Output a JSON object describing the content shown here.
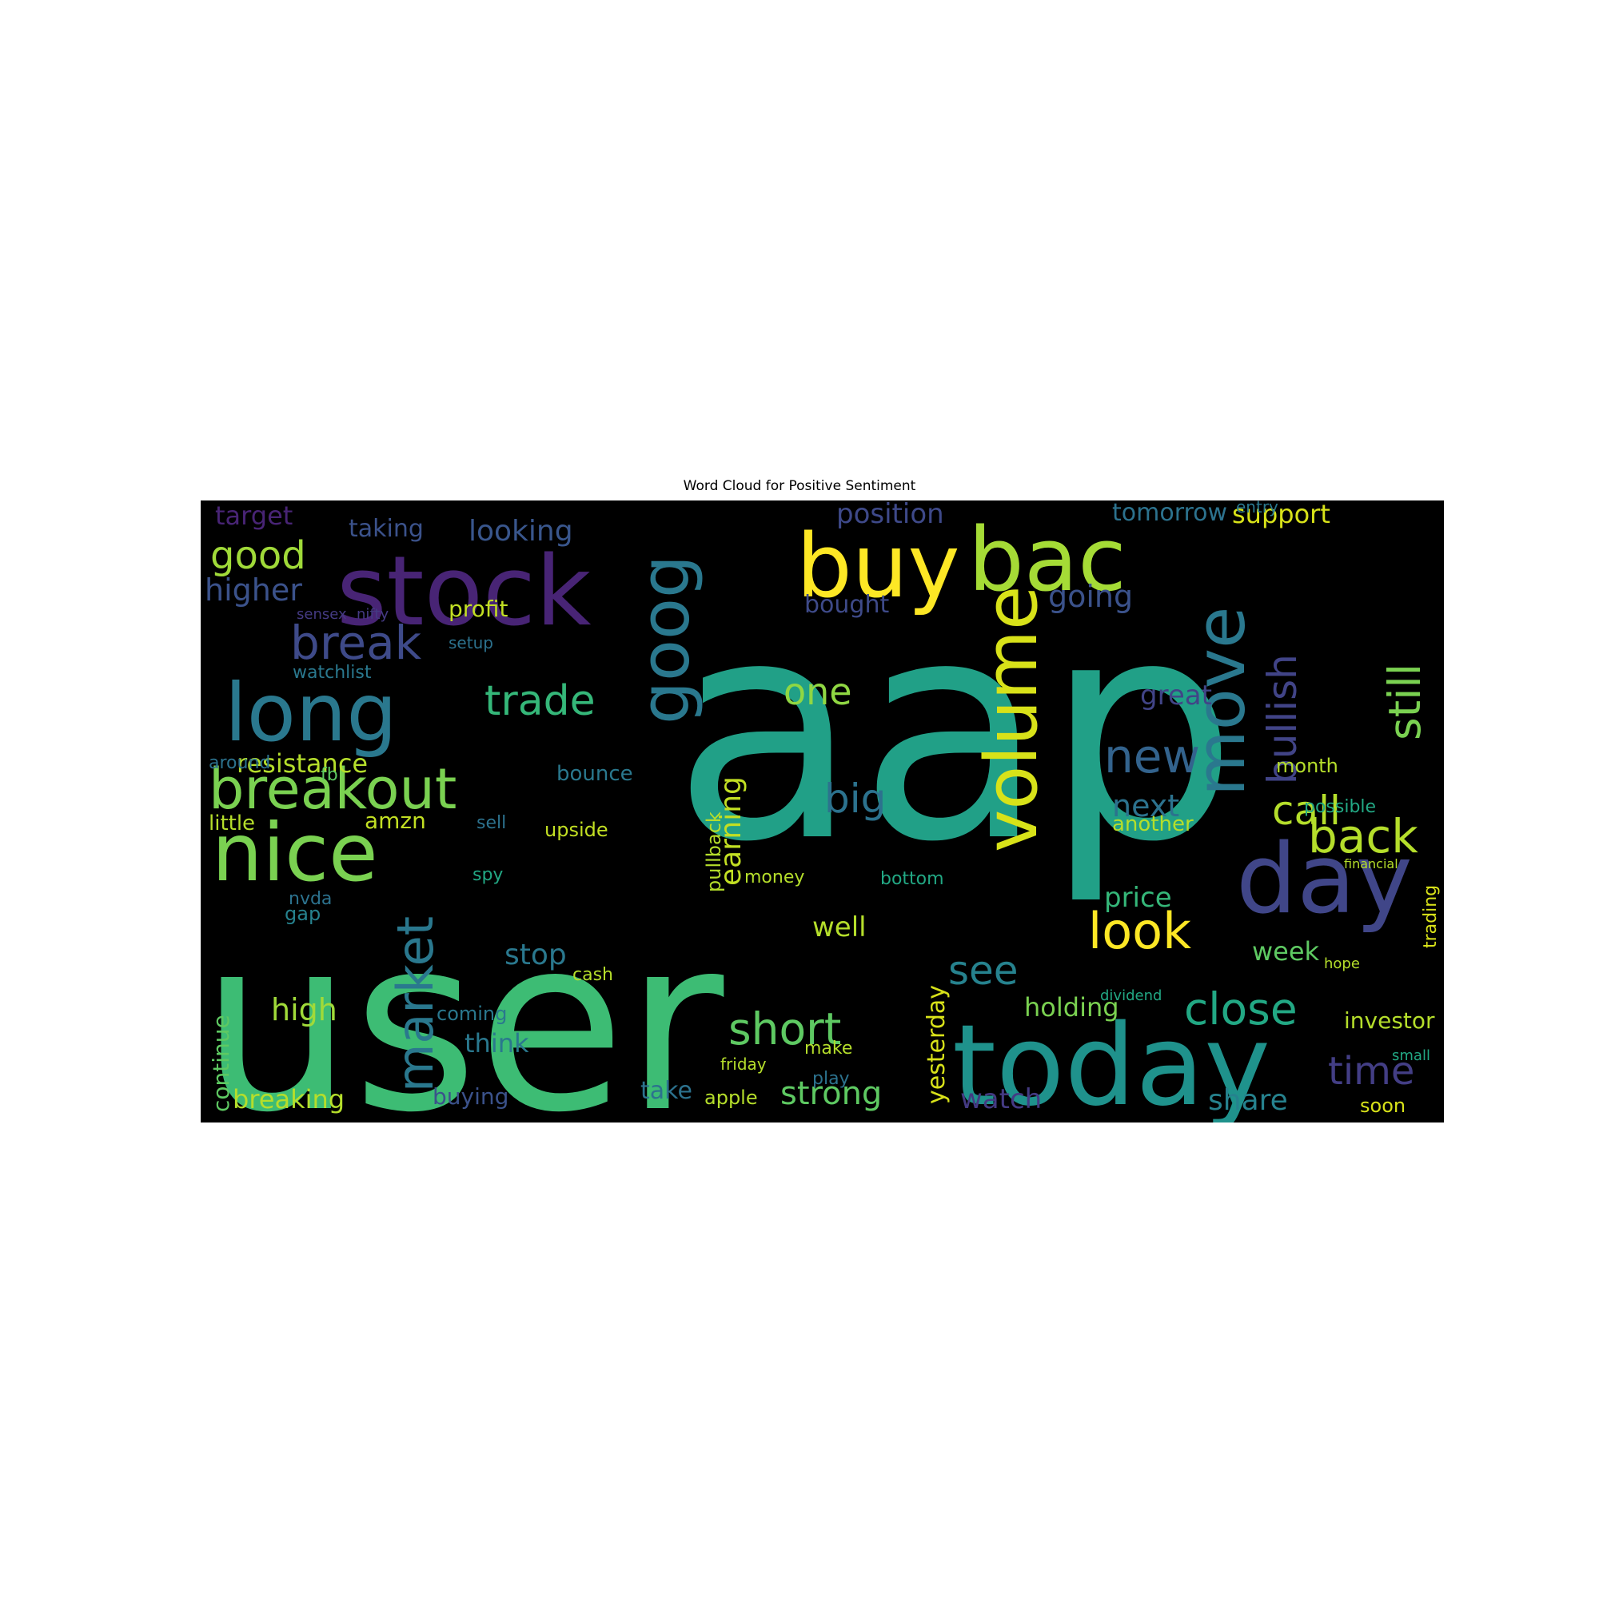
{
  "chart_data": {
    "type": "wordcloud",
    "title": "Word Cloud for Positive Sentiment",
    "background": "#000000",
    "colormap": "viridis",
    "words": [
      {
        "text": "aap",
        "weight": 1.0,
        "color": "#21a087",
        "rotate": false
      },
      {
        "text": "user",
        "weight": 0.95,
        "color": "#3dbc74",
        "rotate": false
      },
      {
        "text": "today",
        "weight": 0.42,
        "color": "#1f928c",
        "rotate": false
      },
      {
        "text": "stock",
        "weight": 0.4,
        "color": "#482475",
        "rotate": false
      },
      {
        "text": "day",
        "weight": 0.38,
        "color": "#404688",
        "rotate": false
      },
      {
        "text": "buy",
        "weight": 0.37,
        "color": "#fde725",
        "rotate": false
      },
      {
        "text": "bac",
        "weight": 0.36,
        "color": "#a5db36",
        "rotate": false
      },
      {
        "text": "long",
        "weight": 0.36,
        "color": "#2a788e",
        "rotate": false
      },
      {
        "text": "nice",
        "weight": 0.36,
        "color": "#7ad151",
        "rotate": false
      },
      {
        "text": "volume",
        "weight": 0.33,
        "color": "#d8e219",
        "rotate": true
      },
      {
        "text": "goog",
        "weight": 0.3,
        "color": "#2a788e",
        "rotate": true
      },
      {
        "text": "move",
        "weight": 0.3,
        "color": "#2a788e",
        "rotate": true
      },
      {
        "text": "breakout",
        "weight": 0.24,
        "color": "#7ad151",
        "rotate": false
      },
      {
        "text": "market",
        "weight": 0.22,
        "color": "#2a788e",
        "rotate": true
      },
      {
        "text": "look",
        "weight": 0.22,
        "color": "#fde725",
        "rotate": false
      },
      {
        "text": "short",
        "weight": 0.2,
        "color": "#5ec962",
        "rotate": false
      },
      {
        "text": "back",
        "weight": 0.2,
        "color": "#b5de2b",
        "rotate": false
      },
      {
        "text": "break",
        "weight": 0.2,
        "color": "#3e4a89",
        "rotate": false
      },
      {
        "text": "close",
        "weight": 0.2,
        "color": "#22a884",
        "rotate": false
      },
      {
        "text": "new",
        "weight": 0.2,
        "color": "#33638d",
        "rotate": false
      },
      {
        "text": "trade",
        "weight": 0.18,
        "color": "#35b779",
        "rotate": false
      },
      {
        "text": "still",
        "weight": 0.18,
        "color": "#7ad151",
        "rotate": true
      },
      {
        "text": "bullish",
        "weight": 0.18,
        "color": "#414487",
        "rotate": true
      },
      {
        "text": "time",
        "weight": 0.16,
        "color": "#433e85",
        "rotate": false
      },
      {
        "text": "call",
        "weight": 0.16,
        "color": "#b5de2b",
        "rotate": false
      },
      {
        "text": "big",
        "weight": 0.16,
        "color": "#2c728e",
        "rotate": false
      },
      {
        "text": "see",
        "weight": 0.16,
        "color": "#26828e",
        "rotate": false
      },
      {
        "text": "good",
        "weight": 0.15,
        "color": "#a0da39",
        "rotate": false
      },
      {
        "text": "one",
        "weight": 0.15,
        "color": "#90d743",
        "rotate": false
      },
      {
        "text": "strong",
        "weight": 0.13,
        "color": "#5ec962",
        "rotate": false
      },
      {
        "text": "higher",
        "weight": 0.12,
        "color": "#3b528b",
        "rotate": false
      },
      {
        "text": "looking",
        "weight": 0.12,
        "color": "#39568c",
        "rotate": false
      },
      {
        "text": "high",
        "weight": 0.12,
        "color": "#a0da39",
        "rotate": false
      },
      {
        "text": "next",
        "weight": 0.12,
        "color": "#2c728e",
        "rotate": false
      },
      {
        "text": "watch",
        "weight": 0.12,
        "color": "#443a83",
        "rotate": false
      },
      {
        "text": "share",
        "weight": 0.12,
        "color": "#26828e",
        "rotate": false
      },
      {
        "text": "going",
        "weight": 0.12,
        "color": "#3b528b",
        "rotate": false
      },
      {
        "text": "position",
        "weight": 0.12,
        "color": "#3e4989",
        "rotate": false
      },
      {
        "text": "breaking",
        "weight": 0.11,
        "color": "#b5de2b",
        "rotate": false
      },
      {
        "text": "earning",
        "weight": 0.11,
        "color": "#c2df23",
        "rotate": true
      },
      {
        "text": "resistance",
        "weight": 0.1,
        "color": "#b5de2b",
        "rotate": false
      },
      {
        "text": "support",
        "weight": 0.1,
        "color": "#d8e219",
        "rotate": false
      },
      {
        "text": "tomorrow",
        "weight": 0.1,
        "color": "#2c728e",
        "rotate": false
      },
      {
        "text": "holding",
        "weight": 0.1,
        "color": "#7ad151",
        "rotate": false
      },
      {
        "text": "week",
        "weight": 0.1,
        "color": "#5ec962",
        "rotate": false
      },
      {
        "text": "price",
        "weight": 0.1,
        "color": "#35b779",
        "rotate": false
      },
      {
        "text": "yesterday",
        "weight": 0.1,
        "color": "#d8e219",
        "rotate": true
      },
      {
        "text": "continue",
        "weight": 0.1,
        "color": "#5ec962",
        "rotate": true
      },
      {
        "text": "target",
        "weight": 0.1,
        "color": "#482475",
        "rotate": false
      },
      {
        "text": "stop",
        "weight": 0.09,
        "color": "#2a788e",
        "rotate": false
      },
      {
        "text": "think",
        "weight": 0.09,
        "color": "#2a788e",
        "rotate": false
      },
      {
        "text": "well",
        "weight": 0.09,
        "color": "#b5de2b",
        "rotate": false
      },
      {
        "text": "great",
        "weight": 0.09,
        "color": "#414487",
        "rotate": false
      },
      {
        "text": "bought",
        "weight": 0.09,
        "color": "#3e4a89",
        "rotate": false
      },
      {
        "text": "taking",
        "weight": 0.09,
        "color": "#3b528b",
        "rotate": false
      },
      {
        "text": "investor",
        "weight": 0.08,
        "color": "#b5de2b",
        "rotate": false
      },
      {
        "text": "amzn",
        "weight": 0.08,
        "color": "#c2df23",
        "rotate": false
      },
      {
        "text": "little",
        "weight": 0.08,
        "color": "#b5de2b",
        "rotate": false
      },
      {
        "text": "take",
        "weight": 0.08,
        "color": "#2c728e",
        "rotate": false
      },
      {
        "text": "profit",
        "weight": 0.08,
        "color": "#c2df23",
        "rotate": false
      },
      {
        "text": "watchlist",
        "weight": 0.07,
        "color": "#2a788e",
        "rotate": false
      },
      {
        "text": "buying",
        "weight": 0.07,
        "color": "#3b528b",
        "rotate": false
      },
      {
        "text": "upside",
        "weight": 0.07,
        "color": "#c2df23",
        "rotate": false
      },
      {
        "text": "bounce",
        "weight": 0.07,
        "color": "#2a788e",
        "rotate": false
      },
      {
        "text": "another",
        "weight": 0.07,
        "color": "#b5de2b",
        "rotate": false
      },
      {
        "text": "possible",
        "weight": 0.06,
        "color": "#22a884",
        "rotate": false
      },
      {
        "text": "money",
        "weight": 0.06,
        "color": "#b5de2b",
        "rotate": false
      },
      {
        "text": "bottom",
        "weight": 0.06,
        "color": "#22a884",
        "rotate": false
      },
      {
        "text": "coming",
        "weight": 0.06,
        "color": "#2a788e",
        "rotate": false
      },
      {
        "text": "friday",
        "weight": 0.05,
        "color": "#b5de2b",
        "rotate": false
      },
      {
        "text": "apple",
        "weight": 0.05,
        "color": "#b5de2b",
        "rotate": false
      },
      {
        "text": "soon",
        "weight": 0.05,
        "color": "#d8e219",
        "rotate": false
      },
      {
        "text": "month",
        "weight": 0.05,
        "color": "#b5de2b",
        "rotate": false
      },
      {
        "text": "trading",
        "weight": 0.05,
        "color": "#d8e219",
        "rotate": true
      },
      {
        "text": "entry",
        "weight": 0.05,
        "color": "#2a788e",
        "rotate": false
      },
      {
        "text": "setup",
        "weight": 0.05,
        "color": "#2c728e",
        "rotate": false
      },
      {
        "text": "nvda",
        "weight": 0.05,
        "color": "#2c728e",
        "rotate": false
      },
      {
        "text": "gap",
        "weight": 0.05,
        "color": "#26828e",
        "rotate": false
      },
      {
        "text": "fb",
        "weight": 0.05,
        "color": "#5ec962",
        "rotate": false
      },
      {
        "text": "spy",
        "weight": 0.05,
        "color": "#22a884",
        "rotate": false
      },
      {
        "text": "sell",
        "weight": 0.05,
        "color": "#2c728e",
        "rotate": false
      },
      {
        "text": "around",
        "weight": 0.05,
        "color": "#2c728e",
        "rotate": false
      },
      {
        "text": "dividend",
        "weight": 0.04,
        "color": "#22a884",
        "rotate": false
      },
      {
        "text": "pullback",
        "weight": 0.04,
        "color": "#b5de2b",
        "rotate": true
      },
      {
        "text": "sensex",
        "weight": 0.04,
        "color": "#443a83",
        "rotate": false
      },
      {
        "text": "nifty",
        "weight": 0.04,
        "color": "#443a83",
        "rotate": false
      },
      {
        "text": "make",
        "weight": 0.04,
        "color": "#b5de2b",
        "rotate": false
      },
      {
        "text": "play",
        "weight": 0.04,
        "color": "#2c728e",
        "rotate": false
      },
      {
        "text": "cash",
        "weight": 0.04,
        "color": "#b5de2b",
        "rotate": false
      },
      {
        "text": "hope",
        "weight": 0.04,
        "color": "#b5de2b",
        "rotate": false
      },
      {
        "text": "financial",
        "weight": 0.03,
        "color": "#b5de2b",
        "rotate": false
      },
      {
        "text": "small",
        "weight": 0.03,
        "color": "#22a884",
        "rotate": false
      }
    ]
  }
}
